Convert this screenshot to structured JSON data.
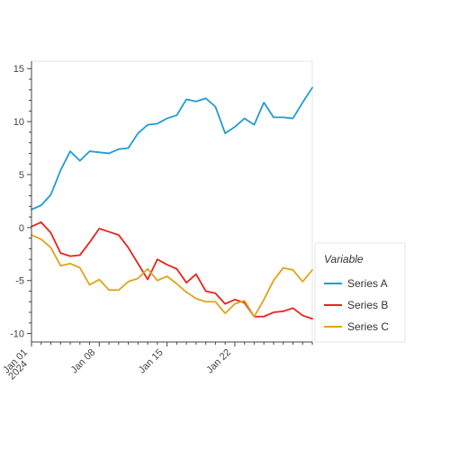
{
  "chart_data": {
    "type": "line",
    "title": "",
    "xlabel": "",
    "ylabel": "",
    "ylim": [
      -10.8,
      15.7
    ],
    "y_ticks": [
      -10,
      -5,
      0,
      5,
      10,
      15
    ],
    "x_ticks": [
      {
        "date": "2024-01-01",
        "label": "Jan 01",
        "sublabel": "2024"
      },
      {
        "date": "2024-01-08",
        "label": "Jan 08",
        "sublabel": ""
      },
      {
        "date": "2024-01-15",
        "label": "Jan 15",
        "sublabel": ""
      },
      {
        "date": "2024-01-22",
        "label": "Jan 22",
        "sublabel": ""
      }
    ],
    "x": [
      "2024-01-01",
      "2024-01-02",
      "2024-01-03",
      "2024-01-04",
      "2024-01-05",
      "2024-01-06",
      "2024-01-07",
      "2024-01-08",
      "2024-01-09",
      "2024-01-10",
      "2024-01-11",
      "2024-01-12",
      "2024-01-13",
      "2024-01-14",
      "2024-01-15",
      "2024-01-16",
      "2024-01-17",
      "2024-01-18",
      "2024-01-19",
      "2024-01-20",
      "2024-01-21",
      "2024-01-22",
      "2024-01-23",
      "2024-01-24",
      "2024-01-25",
      "2024-01-26",
      "2024-01-27",
      "2024-01-28",
      "2024-01-29",
      "2024-01-30"
    ],
    "series": [
      {
        "name": "Series A",
        "color": "#1f9bd7",
        "values": [
          1.7,
          2.1,
          3.1,
          5.4,
          7.2,
          6.3,
          7.2,
          7.1,
          7.0,
          7.4,
          7.5,
          8.9,
          9.7,
          9.8,
          10.3,
          10.6,
          12.1,
          11.9,
          12.2,
          11.4,
          8.9,
          9.5,
          10.3,
          9.7,
          11.8,
          10.4,
          10.4,
          10.3,
          11.8,
          13.2
        ]
      },
      {
        "name": "Series B",
        "color": "#e8231b",
        "values": [
          0.1,
          0.5,
          -0.5,
          -2.4,
          -2.7,
          -2.6,
          -1.4,
          -0.1,
          -0.4,
          -0.7,
          -1.9,
          -3.4,
          -4.9,
          -3.0,
          -3.5,
          -3.9,
          -5.2,
          -4.4,
          -6.0,
          -6.2,
          -7.2,
          -6.8,
          -7.1,
          -8.4,
          -8.4,
          -8.0,
          -7.9,
          -7.6,
          -8.3,
          -8.6
        ]
      },
      {
        "name": "Series C",
        "color": "#e3a21a",
        "values": [
          -0.7,
          -1.1,
          -1.9,
          -3.6,
          -3.4,
          -3.8,
          -5.4,
          -4.9,
          -5.9,
          -5.9,
          -5.1,
          -4.8,
          -3.9,
          -5.0,
          -4.6,
          -5.3,
          -6.1,
          -6.7,
          -7.0,
          -7.0,
          -8.1,
          -7.2,
          -6.9,
          -8.4,
          -6.8,
          -5.0,
          -3.8,
          -4.0,
          -5.1,
          -4.0
        ]
      }
    ],
    "legend": {
      "title": "Variable",
      "placement": "right"
    },
    "grid": false
  }
}
